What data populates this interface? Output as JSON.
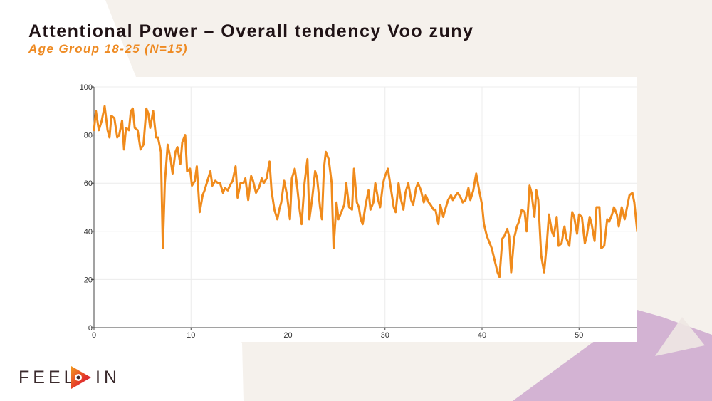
{
  "header": {
    "title": "Attentional Power – Overall tendency Voo zuny",
    "subtitle": "Age Group 18-25 (N=15)"
  },
  "logo": {
    "left_text": "FEEL",
    "right_text": "IN",
    "icon": "play-eye-icon"
  },
  "colors": {
    "line": "#f08b1c",
    "title": "#1f1215",
    "subtitle": "#ee8a22",
    "background_shape": "#f5f1ec",
    "accent_shape": "#d3b3d3"
  },
  "chart_data": {
    "type": "line",
    "title": "",
    "xlabel": "",
    "ylabel": "",
    "xlim": [
      0,
      56
    ],
    "ylim": [
      0,
      100
    ],
    "grid": true,
    "legend": "none",
    "x_ticks": [
      0,
      10,
      20,
      30,
      40,
      50
    ],
    "y_ticks": [
      0,
      20,
      40,
      60,
      80,
      100
    ],
    "series": [
      {
        "points": [
          [
            0.0,
            82
          ],
          [
            0.2,
            90
          ],
          [
            0.5,
            82
          ],
          [
            0.8,
            86
          ],
          [
            1.1,
            92
          ],
          [
            1.4,
            82
          ],
          [
            1.6,
            79
          ],
          [
            1.8,
            88
          ],
          [
            2.1,
            87
          ],
          [
            2.4,
            79
          ],
          [
            2.6,
            80
          ],
          [
            2.9,
            86
          ],
          [
            3.1,
            74
          ],
          [
            3.3,
            83
          ],
          [
            3.6,
            82
          ],
          [
            3.8,
            90
          ],
          [
            4.0,
            91
          ],
          [
            4.2,
            83
          ],
          [
            4.5,
            82
          ],
          [
            4.8,
            74
          ],
          [
            5.1,
            76
          ],
          [
            5.4,
            91
          ],
          [
            5.6,
            89
          ],
          [
            5.8,
            83
          ],
          [
            6.1,
            90
          ],
          [
            6.4,
            79
          ],
          [
            6.6,
            79
          ],
          [
            6.9,
            73
          ],
          [
            7.1,
            33
          ],
          [
            7.3,
            60
          ],
          [
            7.6,
            76
          ],
          [
            7.9,
            70
          ],
          [
            8.1,
            64
          ],
          [
            8.4,
            73
          ],
          [
            8.6,
            75
          ],
          [
            8.9,
            68
          ],
          [
            9.1,
            77
          ],
          [
            9.4,
            80
          ],
          [
            9.6,
            65
          ],
          [
            9.9,
            66
          ],
          [
            10.1,
            59
          ],
          [
            10.4,
            61
          ],
          [
            10.6,
            67
          ],
          [
            10.9,
            48
          ],
          [
            11.2,
            55
          ],
          [
            11.4,
            57
          ],
          [
            11.7,
            61
          ],
          [
            12.0,
            65
          ],
          [
            12.2,
            59
          ],
          [
            12.5,
            61
          ],
          [
            12.8,
            60
          ],
          [
            13.0,
            60
          ],
          [
            13.3,
            56
          ],
          [
            13.5,
            58
          ],
          [
            13.8,
            57
          ],
          [
            14.0,
            59
          ],
          [
            14.3,
            61
          ],
          [
            14.6,
            67
          ],
          [
            14.8,
            54
          ],
          [
            15.1,
            60
          ],
          [
            15.4,
            60
          ],
          [
            15.6,
            62
          ],
          [
            15.9,
            53
          ],
          [
            16.2,
            63
          ],
          [
            16.4,
            61
          ],
          [
            16.7,
            56
          ],
          [
            17.0,
            58
          ],
          [
            17.3,
            62
          ],
          [
            17.5,
            60
          ],
          [
            17.8,
            62
          ],
          [
            18.1,
            69
          ],
          [
            18.3,
            57
          ],
          [
            18.6,
            49
          ],
          [
            18.9,
            45
          ],
          [
            19.1,
            49
          ],
          [
            19.3,
            52
          ],
          [
            19.6,
            61
          ],
          [
            19.9,
            55
          ],
          [
            20.2,
            45
          ],
          [
            20.4,
            62
          ],
          [
            20.7,
            66
          ],
          [
            20.9,
            60
          ],
          [
            21.2,
            49
          ],
          [
            21.4,
            43
          ],
          [
            21.7,
            60
          ],
          [
            22.0,
            70
          ],
          [
            22.2,
            45
          ],
          [
            22.5,
            54
          ],
          [
            22.8,
            65
          ],
          [
            23.0,
            62
          ],
          [
            23.3,
            50
          ],
          [
            23.5,
            45
          ],
          [
            23.7,
            66
          ],
          [
            23.9,
            73
          ],
          [
            24.2,
            70
          ],
          [
            24.5,
            60
          ],
          [
            24.7,
            33
          ],
          [
            25.0,
            52
          ],
          [
            25.2,
            45
          ],
          [
            25.5,
            48
          ],
          [
            25.8,
            51
          ],
          [
            26.0,
            60
          ],
          [
            26.3,
            50
          ],
          [
            26.6,
            49
          ],
          [
            26.8,
            66
          ],
          [
            27.1,
            52
          ],
          [
            27.3,
            50
          ],
          [
            27.5,
            45
          ],
          [
            27.7,
            43
          ],
          [
            28.0,
            51
          ],
          [
            28.3,
            57
          ],
          [
            28.5,
            49
          ],
          [
            28.8,
            52
          ],
          [
            29.0,
            60
          ],
          [
            29.3,
            53
          ],
          [
            29.5,
            50
          ],
          [
            29.8,
            60
          ],
          [
            30.0,
            63
          ],
          [
            30.3,
            66
          ],
          [
            30.6,
            58
          ],
          [
            30.9,
            50
          ],
          [
            31.1,
            48
          ],
          [
            31.4,
            60
          ],
          [
            31.6,
            54
          ],
          [
            31.9,
            49
          ],
          [
            32.1,
            56
          ],
          [
            32.4,
            60
          ],
          [
            32.7,
            53
          ],
          [
            32.9,
            51
          ],
          [
            33.2,
            58
          ],
          [
            33.4,
            60
          ],
          [
            33.7,
            57
          ],
          [
            34.0,
            52
          ],
          [
            34.2,
            55
          ],
          [
            34.5,
            52
          ],
          [
            34.7,
            51
          ],
          [
            35.0,
            49
          ],
          [
            35.2,
            49
          ],
          [
            35.5,
            43
          ],
          [
            35.7,
            51
          ],
          [
            36.0,
            46
          ],
          [
            36.2,
            49
          ],
          [
            36.5,
            53
          ],
          [
            36.8,
            55
          ],
          [
            37.0,
            53
          ],
          [
            37.3,
            55
          ],
          [
            37.5,
            56
          ],
          [
            37.8,
            54
          ],
          [
            38.0,
            52
          ],
          [
            38.3,
            53
          ],
          [
            38.6,
            58
          ],
          [
            38.8,
            53
          ],
          [
            39.1,
            57
          ],
          [
            39.4,
            64
          ],
          [
            39.7,
            57
          ],
          [
            40.0,
            51
          ],
          [
            40.2,
            43
          ],
          [
            40.5,
            38
          ],
          [
            40.8,
            35
          ],
          [
            41.0,
            33
          ],
          [
            41.3,
            28
          ],
          [
            41.6,
            23
          ],
          [
            41.8,
            21
          ],
          [
            42.1,
            37
          ],
          [
            42.3,
            38
          ],
          [
            42.6,
            41
          ],
          [
            42.8,
            38
          ],
          [
            43.0,
            23
          ],
          [
            43.3,
            37
          ],
          [
            43.6,
            42
          ],
          [
            43.8,
            44
          ],
          [
            44.1,
            49
          ],
          [
            44.4,
            48
          ],
          [
            44.6,
            40
          ],
          [
            44.9,
            59
          ],
          [
            45.1,
            56
          ],
          [
            45.4,
            46
          ],
          [
            45.6,
            57
          ],
          [
            45.8,
            53
          ],
          [
            46.1,
            30
          ],
          [
            46.4,
            23
          ],
          [
            46.7,
            36
          ],
          [
            46.9,
            47
          ],
          [
            47.2,
            40
          ],
          [
            47.4,
            38
          ],
          [
            47.7,
            46
          ],
          [
            47.9,
            34
          ],
          [
            48.2,
            35
          ],
          [
            48.5,
            42
          ],
          [
            48.7,
            37
          ],
          [
            49.0,
            34
          ],
          [
            49.3,
            48
          ],
          [
            49.5,
            46
          ],
          [
            49.8,
            39
          ],
          [
            50.0,
            47
          ],
          [
            50.3,
            46
          ],
          [
            50.6,
            35
          ],
          [
            50.8,
            38
          ],
          [
            51.1,
            46
          ],
          [
            51.3,
            43
          ],
          [
            51.6,
            36
          ],
          [
            51.8,
            50
          ],
          [
            52.1,
            50
          ],
          [
            52.3,
            33
          ],
          [
            52.6,
            34
          ],
          [
            52.9,
            45
          ],
          [
            53.1,
            44
          ],
          [
            53.4,
            47
          ],
          [
            53.6,
            50
          ],
          [
            53.9,
            47
          ],
          [
            54.1,
            42
          ],
          [
            54.4,
            50
          ],
          [
            54.7,
            45
          ],
          [
            54.9,
            49
          ],
          [
            55.2,
            55
          ],
          [
            55.5,
            56
          ],
          [
            55.7,
            52
          ],
          [
            56.0,
            40
          ]
        ]
      }
    ]
  }
}
